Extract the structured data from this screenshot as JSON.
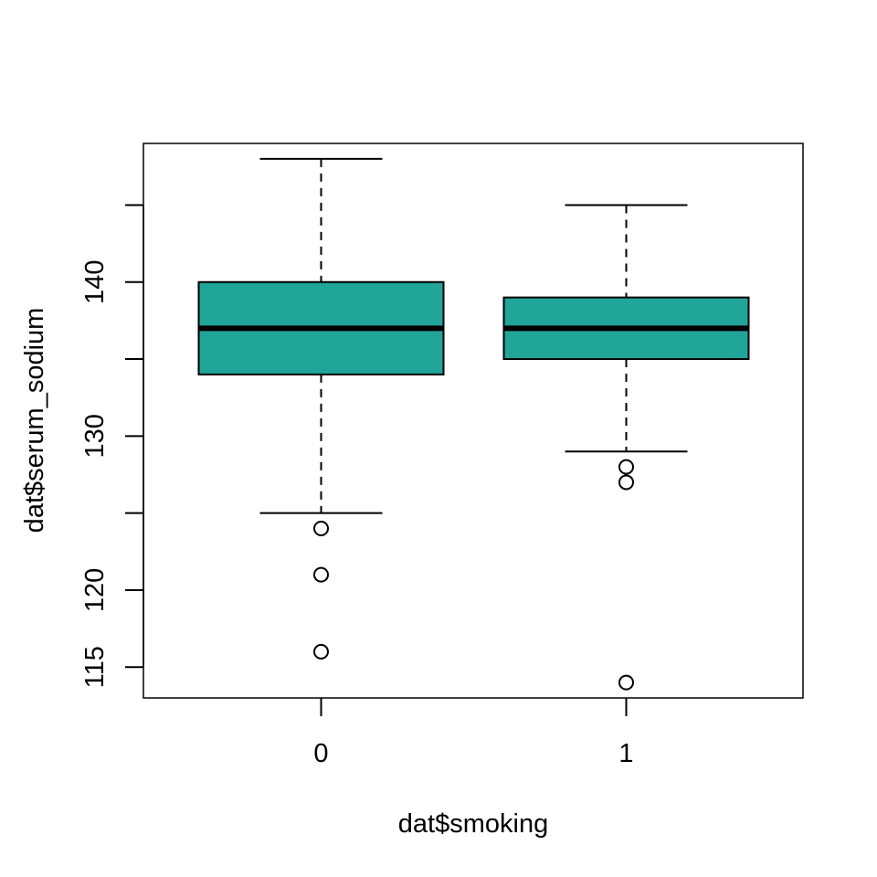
{
  "chart_data": {
    "type": "boxplot",
    "title": "",
    "xlabel": "dat$smoking",
    "ylabel": "dat$serum_sodium",
    "ylim": [
      113,
      149
    ],
    "y_ticks": [
      115,
      120,
      130,
      140
    ],
    "y_minor_ticks": [
      125,
      135,
      145
    ],
    "box_color": "#20A598",
    "groups": [
      {
        "label": "0",
        "whisker_low": 125,
        "q1": 134,
        "median": 137,
        "q3": 140,
        "whisker_high": 148,
        "outliers": [
          124,
          121,
          116
        ]
      },
      {
        "label": "1",
        "whisker_low": 129,
        "q1": 135,
        "median": 137,
        "q3": 139,
        "whisker_high": 145,
        "outliers": [
          128,
          127,
          114
        ]
      }
    ]
  }
}
